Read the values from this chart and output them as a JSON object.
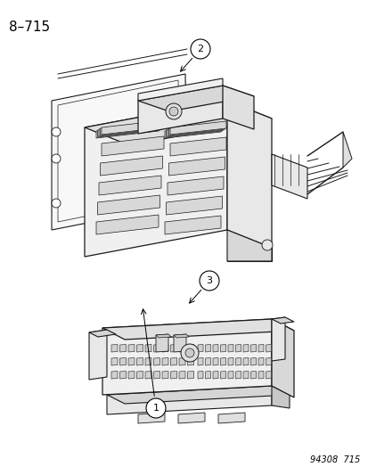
{
  "title": "8–715",
  "footer": "94308  715",
  "bg_color": "#ffffff",
  "text_color": "#000000",
  "line_color": "#1a1a1a",
  "fill_white": "#ffffff",
  "fill_light": "#f5f5f5",
  "fill_medium": "#e8e8e8",
  "fill_dark": "#d0d0d0"
}
